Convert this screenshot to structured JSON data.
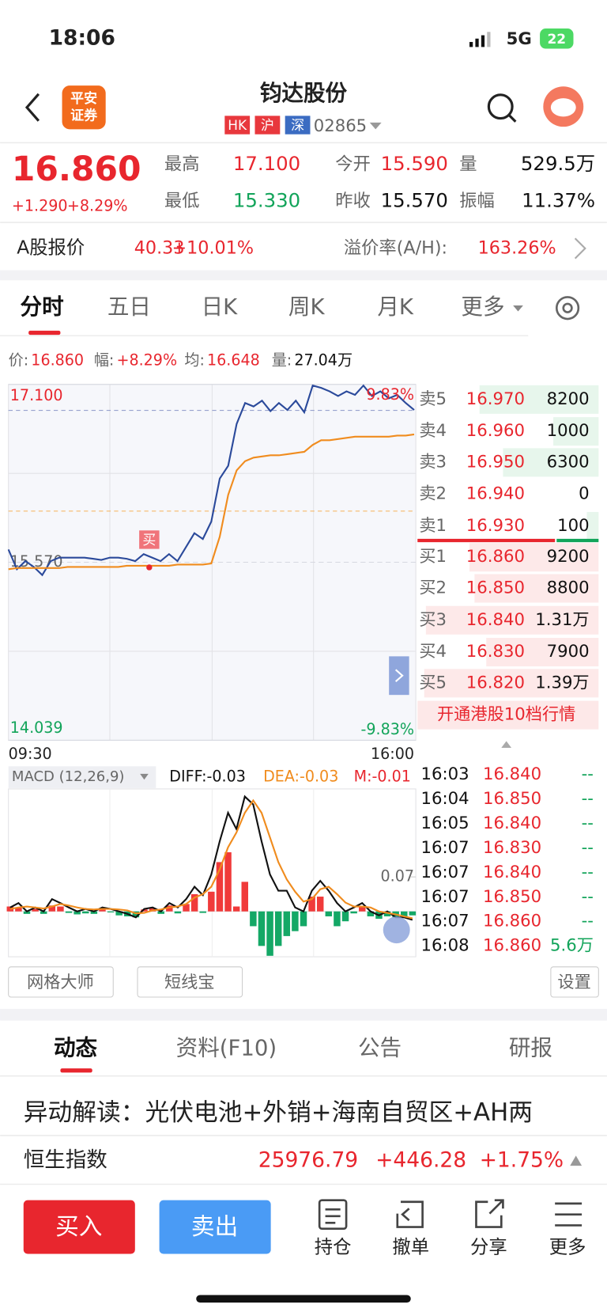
{
  "status": {
    "time": "18:06",
    "network": "5G",
    "battery": "22"
  },
  "header": {
    "logo": [
      "平安",
      "证券"
    ],
    "title": "钧达股份",
    "markets": [
      "HK",
      "沪",
      "深"
    ],
    "code": "02865"
  },
  "quote": {
    "price": "16.860",
    "change": "+1.290",
    "change_pct": "+8.29%",
    "stats": [
      [
        "最高",
        "17.100"
      ],
      [
        "今开",
        "15.590"
      ],
      [
        "量",
        "529.5万"
      ],
      [
        "最低",
        "15.330"
      ],
      [
        "昨收",
        "15.570"
      ],
      [
        "振幅",
        "11.37%"
      ]
    ]
  },
  "a_share": {
    "label": "A股报价",
    "price": "40.33",
    "change_pct": "+10.01%",
    "premium_label": "溢价率(A/H):",
    "premium": "163.26%"
  },
  "period_tabs": [
    "分时",
    "五日",
    "日K",
    "周K",
    "月K",
    "更多"
  ],
  "info_bar": [
    [
      "价:",
      "16.860"
    ],
    [
      "幅:",
      "+8.29%"
    ],
    [
      "均:",
      "16.648"
    ],
    [
      "量:",
      "27.04万"
    ]
  ],
  "chart_data": [
    {
      "type": "line",
      "ylim": [
        14.039,
        17.1
      ],
      "yticks": [
        {
          "value": 17.1,
          "label": "17.100"
        },
        {
          "value": 15.57,
          "label": "15.570"
        },
        {
          "value": 14.039,
          "label": "14.039"
        }
      ],
      "pct_labels": [
        "9.83%",
        "-9.83%"
      ],
      "x_labels": [
        "09:30",
        "16:00"
      ],
      "buy_marker": "买",
      "series": [
        {
          "color": "#2b4a9b",
          "values": [
            15.68,
            15.51,
            15.58,
            15.53,
            15.46,
            15.58,
            15.61,
            15.61,
            15.61,
            15.61,
            15.6,
            15.59,
            15.61,
            15.61,
            15.6,
            15.58,
            15.64,
            15.61,
            15.58,
            15.64,
            15.58,
            15.7,
            15.82,
            15.77,
            15.92,
            16.29,
            16.4,
            16.76,
            16.94,
            16.91,
            16.96,
            16.87,
            16.94,
            16.88,
            16.96,
            16.86,
            17.09,
            17.07,
            17.04,
            17.0,
            17.04,
            17.01,
            17.09,
            17.0,
            17.04,
            16.98,
            17.01,
            16.94,
            16.88
          ]
        },
        {
          "color": "#f08c1e",
          "values": [
            15.51,
            15.52,
            15.52,
            15.52,
            15.52,
            15.52,
            15.52,
            15.53,
            15.53,
            15.53,
            15.53,
            15.53,
            15.53,
            15.53,
            15.54,
            15.54,
            15.54,
            15.54,
            15.54,
            15.54,
            15.55,
            15.55,
            15.55,
            15.55,
            15.56,
            15.79,
            16.15,
            16.36,
            16.44,
            16.47,
            16.48,
            16.49,
            16.49,
            16.5,
            16.51,
            16.52,
            16.58,
            16.62,
            16.62,
            16.63,
            16.64,
            16.65,
            16.65,
            16.65,
            16.65,
            16.65,
            16.66,
            16.66,
            16.67
          ]
        }
      ]
    },
    {
      "type": "macd",
      "title": "MACD (12,26,9)",
      "legend": [
        "DIFF:-0.03",
        "DEA:-0.03",
        "M:-0.01"
      ],
      "ylim": [
        -0.092,
        0.245
      ],
      "yticks": [
        0.07
      ],
      "up_color": "#f03a3a",
      "down_color": "#14a866",
      "series": [
        {
          "color": "#111111",
          "values": [
            0.008,
            0.017,
            0,
            0.008,
            0,
            0.025,
            0.017,
            0.008,
            0,
            0.005,
            0,
            0.008,
            0.005,
            0,
            -0.005,
            -0.012,
            0.005,
            0.008,
            0,
            0.017,
            0.008,
            0.025,
            0.05,
            0.033,
            0.075,
            0.142,
            0.2,
            0.167,
            0.233,
            0.217,
            0.142,
            0.075,
            0.042,
            0.042,
            0.008,
            0,
            0.042,
            0.062,
            0.042,
            0.017,
            0,
            0.008,
            0.017,
            0,
            -0.008,
            0,
            -0.012,
            -0.012,
            -0.017
          ]
        },
        {
          "color": "#f08c1e",
          "values": [
            0.005,
            0.008,
            0.01,
            0.008,
            0.006,
            0.01,
            0.015,
            0.012,
            0.008,
            0.005,
            0.004,
            0.005,
            0.005,
            0.004,
            0.002,
            -0.004,
            -0.003,
            0.002,
            0.004,
            0.008,
            0.01,
            0.015,
            0.028,
            0.035,
            0.05,
            0.085,
            0.13,
            0.16,
            0.2,
            0.225,
            0.2,
            0.15,
            0.1,
            0.065,
            0.04,
            0.02,
            0.025,
            0.045,
            0.05,
            0.035,
            0.018,
            0.01,
            0.01,
            0.008,
            0,
            -0.003,
            -0.006,
            -0.01,
            -0.014
          ]
        },
        {
          "values": [
            0.01,
            0.008,
            -0.005,
            0.005,
            -0.005,
            0.012,
            0.01,
            -0.003,
            -0.006,
            -0.004,
            -0.005,
            0.004,
            -0.002,
            -0.008,
            -0.01,
            -0.012,
            0.004,
            0.006,
            -0.005,
            0.012,
            -0.004,
            0.015,
            0.035,
            -0.003,
            0.04,
            0.1,
            0.12,
            0.01,
            0.06,
            -0.03,
            -0.07,
            -0.09,
            -0.07,
            -0.05,
            -0.04,
            -0.03,
            0.03,
            0.03,
            -0.01,
            -0.03,
            -0.02,
            -0.004,
            0.01,
            -0.01,
            -0.015,
            -0.01,
            -0.012,
            -0.01,
            -0.008
          ]
        }
      ]
    }
  ],
  "order_book": {
    "asks": [
      [
        "卖5",
        "16.970",
        "8200"
      ],
      [
        "卖4",
        "16.960",
        "1000"
      ],
      [
        "卖3",
        "16.950",
        "6300"
      ],
      [
        "卖2",
        "16.940",
        "0"
      ],
      [
        "卖1",
        "16.930",
        "100"
      ]
    ],
    "bids": [
      [
        "买1",
        "16.860",
        "9200"
      ],
      [
        "买2",
        "16.850",
        "8800"
      ],
      [
        "买3",
        "16.840",
        "1.31万"
      ],
      [
        "买4",
        "16.830",
        "7900"
      ],
      [
        "买5",
        "16.820",
        "1.39万"
      ]
    ],
    "upgrade": "开通港股10档行情"
  },
  "trades": [
    [
      "16:03",
      "16.840",
      "--"
    ],
    [
      "16:04",
      "16.850",
      "--"
    ],
    [
      "16:05",
      "16.840",
      "--"
    ],
    [
      "16:07",
      "16.830",
      "--"
    ],
    [
      "16:07",
      "16.840",
      "--"
    ],
    [
      "16:07",
      "16.850",
      "--"
    ],
    [
      "16:07",
      "16.860",
      "--"
    ],
    [
      "16:08",
      "16.860",
      "5.6万"
    ]
  ],
  "tools": [
    "网格大师",
    "短线宝",
    "设置"
  ],
  "content_tabs": [
    "动态",
    "资料(F10)",
    "公告",
    "研报"
  ],
  "news": "异动解读：光伏电池+外销+海南自贸区+AH两",
  "index": {
    "name": "恒生指数",
    "value": "25976.79",
    "change": "+446.28",
    "change_pct": "+1.75%"
  },
  "actions": {
    "buy": "买入",
    "sell": "卖出",
    "tabs": [
      "持仓",
      "撤单",
      "分享",
      "更多"
    ]
  }
}
